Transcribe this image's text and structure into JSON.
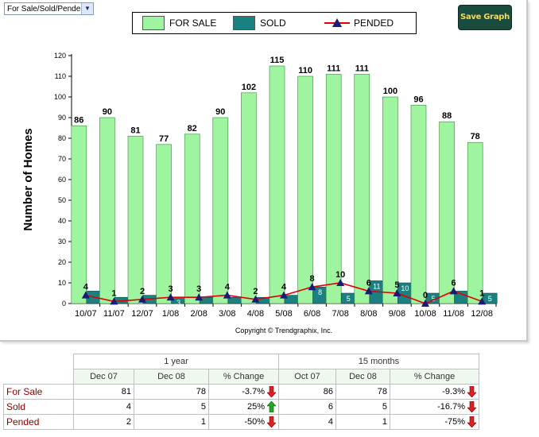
{
  "selector": {
    "value": "For Sale/Sold/Pended",
    "arrow_icon": "chevron-down-icon"
  },
  "save_button": {
    "label": "Save Graph"
  },
  "legend": {
    "for_sale": "FOR SALE",
    "sold": "SOLD",
    "pended": "PENDED"
  },
  "colors": {
    "for_sale": "#9ff59f",
    "sold": "#1a8080",
    "pended_line": "#e00000",
    "pended_marker": "#1a1a7a"
  },
  "chart_data": {
    "type": "bar",
    "ylabel": "Number of Homes",
    "ylim": [
      0,
      120
    ],
    "yticks": [
      0,
      10,
      20,
      30,
      40,
      50,
      60,
      70,
      80,
      90,
      100,
      110,
      120
    ],
    "categories": [
      "10/07",
      "11/07",
      "12/07",
      "1/08",
      "2/08",
      "3/08",
      "4/08",
      "5/08",
      "6/08",
      "7/08",
      "8/08",
      "9/08",
      "10/08",
      "11/08",
      "12/08"
    ],
    "series": [
      {
        "name": "FOR SALE",
        "type": "bar",
        "values": [
          86,
          90,
          81,
          77,
          82,
          90,
          102,
          115,
          110,
          111,
          111,
          100,
          96,
          88,
          78
        ]
      },
      {
        "name": "SOLD",
        "type": "bar",
        "values": [
          6,
          3,
          4,
          3,
          3,
          3,
          3,
          4,
          8,
          5,
          11,
          10,
          5,
          6,
          5
        ]
      },
      {
        "name": "PENDED",
        "type": "line",
        "values": [
          4,
          1,
          2,
          3,
          3,
          4,
          2,
          4,
          8,
          10,
          6,
          5,
          0,
          6,
          1
        ]
      }
    ],
    "sold_bar_labels": [
      "",
      "",
      "",
      "3",
      "",
      "",
      "",
      "",
      "8",
      "5",
      "11",
      "10",
      "5",
      "",
      "5"
    ],
    "copyright": "Copyright © Trendgraphix, Inc."
  },
  "table": {
    "group_headers": [
      "1 year",
      "15 months"
    ],
    "column_headers": [
      "Dec 07",
      "Dec 08",
      "% Change",
      "Oct 07",
      "Dec 08",
      "% Change"
    ],
    "rows": [
      {
        "label": "For Sale",
        "cells": [
          "81",
          "78",
          "-3.7%",
          "86",
          "78",
          "-9.3%"
        ],
        "arrows": [
          "down",
          "down"
        ]
      },
      {
        "label": "Sold",
        "cells": [
          "4",
          "5",
          "25%",
          "6",
          "5",
          "-16.7%"
        ],
        "arrows": [
          "up",
          "down"
        ]
      },
      {
        "label": "Pended",
        "cells": [
          "2",
          "1",
          "-50%",
          "4",
          "1",
          "-75%"
        ],
        "arrows": [
          "down",
          "down"
        ]
      }
    ]
  }
}
